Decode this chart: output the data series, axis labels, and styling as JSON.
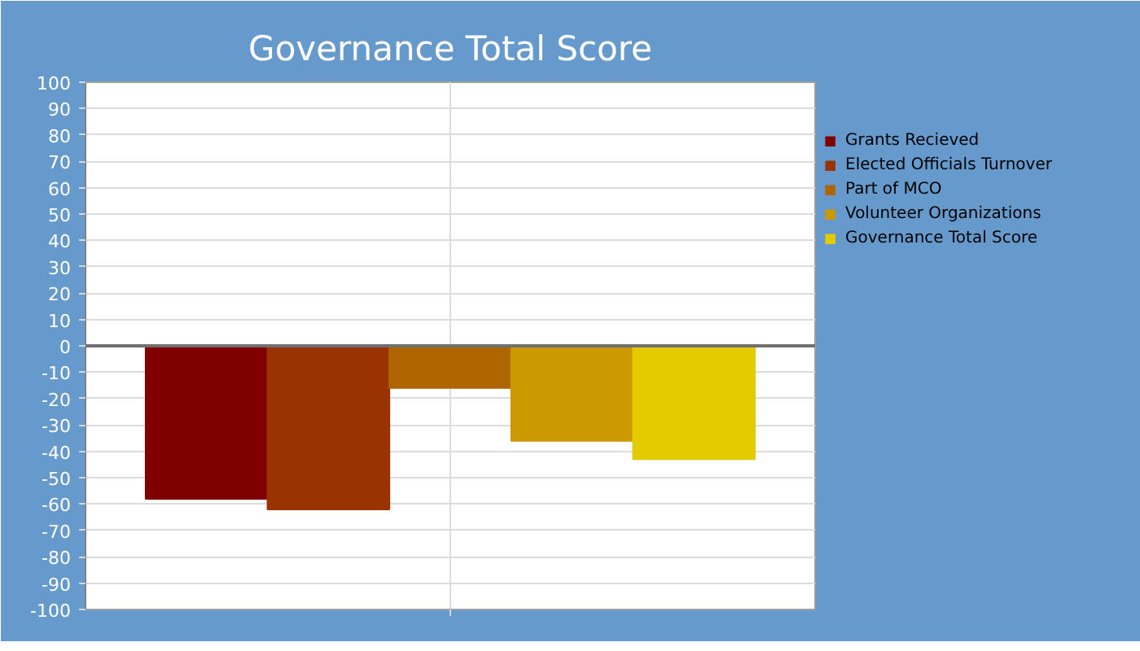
{
  "chart_data": {
    "type": "bar",
    "title": "Governance Total Score",
    "categories": [
      null
    ],
    "series": [
      {
        "name": "Grants Recieved",
        "color": "#800000",
        "values": [
          -58
        ]
      },
      {
        "name": "Elected Officials Turnover",
        "color": "#993300",
        "values": [
          -62
        ]
      },
      {
        "name": "Part of MCO",
        "color": "#b06600",
        "values": [
          -16
        ]
      },
      {
        "name": "Volunteer Organizations",
        "color": "#cc9900",
        "values": [
          -36
        ]
      },
      {
        "name": "Governance Total Score",
        "color": "#e3cb00",
        "values": [
          -43
        ]
      }
    ],
    "ylim": [
      -100,
      100
    ],
    "yticks": [
      -100,
      -90,
      -80,
      -70,
      -60,
      -50,
      -40,
      -30,
      -20,
      -10,
      0,
      10,
      20,
      30,
      40,
      50,
      60,
      70,
      80,
      90,
      100
    ],
    "grid": true,
    "legend": "top right"
  }
}
